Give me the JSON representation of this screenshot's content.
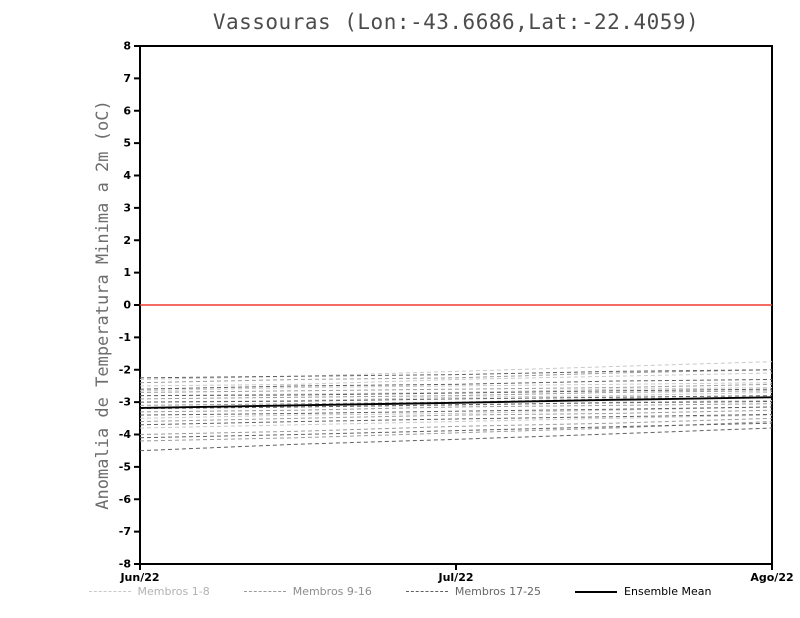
{
  "chart_data": {
    "type": "line",
    "title": "Vassouras (Lon:-43.6686,Lat:-22.4059)",
    "ylabel": "Anomalia de Temperatura Minima a 2m (oC)",
    "xlabel": "",
    "x": [
      "Jun/22",
      "Jul/22",
      "Ago/22"
    ],
    "ylim": [
      -8,
      8
    ],
    "yticks": [
      -8,
      -7,
      -6,
      -5,
      -4,
      -3,
      -2,
      -1,
      0,
      1,
      2,
      3,
      4,
      5,
      6,
      7,
      8
    ],
    "grid": false,
    "zero_line": {
      "y": 0,
      "color": "#ee3b2e"
    },
    "groups": [
      {
        "name": "Membros 1-8",
        "color": "#c9c9c9",
        "dash": "4 3",
        "members": [
          [
            -2.3,
            -2.2,
            -2.05,
            -1.9,
            -1.75
          ],
          [
            -2.5,
            -2.45,
            -2.3,
            -2.2,
            -2.1
          ],
          [
            -2.65,
            -2.55,
            -2.5,
            -2.45,
            -2.4
          ],
          [
            -2.8,
            -2.75,
            -2.7,
            -2.6,
            -2.55
          ],
          [
            -3.0,
            -2.95,
            -2.85,
            -2.8,
            -2.7
          ],
          [
            -3.2,
            -3.15,
            -3.1,
            -3.0,
            -2.95
          ],
          [
            -3.5,
            -3.4,
            -3.35,
            -3.25,
            -3.15
          ],
          [
            -3.8,
            -3.7,
            -3.6,
            -3.5,
            -3.4
          ]
        ]
      },
      {
        "name": "Membros 9-16",
        "color": "#9b9b9b",
        "dash": "4 3",
        "members": [
          [
            -2.4,
            -2.3,
            -2.25,
            -2.1,
            -2.0
          ],
          [
            -2.7,
            -2.65,
            -2.6,
            -2.55,
            -2.45
          ],
          [
            -2.9,
            -2.85,
            -2.8,
            -2.7,
            -2.65
          ],
          [
            -3.1,
            -3.05,
            -3.0,
            -2.9,
            -2.85
          ],
          [
            -3.3,
            -3.25,
            -3.15,
            -3.1,
            -3.05
          ],
          [
            -3.6,
            -3.5,
            -3.4,
            -3.35,
            -3.25
          ],
          [
            -4.0,
            -3.9,
            -3.75,
            -3.65,
            -3.5
          ],
          [
            -4.2,
            -4.1,
            -3.95,
            -3.8,
            -3.6
          ]
        ]
      },
      {
        "name": "Membros 17-25",
        "color": "#606060",
        "dash": "4 3",
        "members": [
          [
            -2.25,
            -2.2,
            -2.15,
            -2.05,
            -2.0
          ],
          [
            -2.6,
            -2.5,
            -2.45,
            -2.35,
            -2.3
          ],
          [
            -2.8,
            -2.78,
            -2.72,
            -2.65,
            -2.6
          ],
          [
            -3.0,
            -2.97,
            -2.9,
            -2.85,
            -2.8
          ],
          [
            -3.2,
            -3.15,
            -3.08,
            -3.02,
            -2.98
          ],
          [
            -3.4,
            -3.35,
            -3.28,
            -3.22,
            -3.15
          ],
          [
            -3.7,
            -3.6,
            -3.52,
            -3.45,
            -3.38
          ],
          [
            -4.1,
            -4.0,
            -3.88,
            -3.76,
            -3.65
          ],
          [
            -4.5,
            -4.3,
            -4.15,
            -3.98,
            -3.8
          ]
        ]
      }
    ],
    "mean": {
      "name": "Ensemble Mean",
      "color": "#000000",
      "values": [
        -3.18,
        -3.1,
        -3.02,
        -2.93,
        -2.85
      ]
    },
    "legend": [
      {
        "label": "Membros 1-8",
        "color": "#c9c9c9",
        "text_color": "#b2b2b2",
        "dash": true
      },
      {
        "label": "Membros 9-16",
        "color": "#9b9b9b",
        "text_color": "#8d8d8d",
        "dash": true
      },
      {
        "label": "Membros 17-25",
        "color": "#606060",
        "text_color": "#666666",
        "dash": true
      },
      {
        "label": "Ensemble Mean",
        "color": "#000000",
        "text_color": "#000000",
        "dash": false
      }
    ],
    "legend_position": "bottom"
  }
}
